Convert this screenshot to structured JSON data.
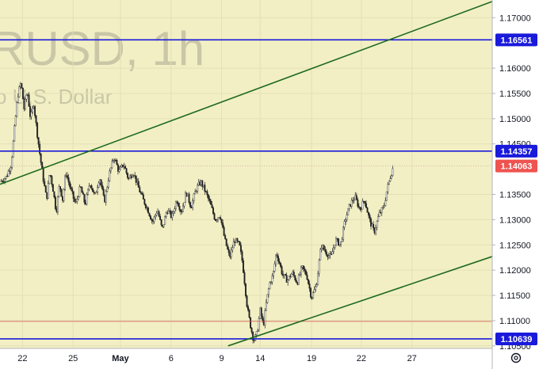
{
  "watermark": {
    "symbol": "RUSD, 1h",
    "description": "o U.S. Dollar"
  },
  "colors": {
    "background": "#f2efc4",
    "blue_level": "#1a1adb",
    "trend": "#1e6b1e",
    "red_level": "#d9534f",
    "candle": "#222222",
    "price_tag": "#ef5350"
  },
  "chart_data": {
    "type": "candlestick",
    "title": "",
    "ylim": [
      1.1045,
      1.1735
    ],
    "y_ticks": [
      "1.17000",
      "1.16000",
      "1.15500",
      "1.15000",
      "1.14500",
      "1.13500",
      "1.13000",
      "1.12500",
      "1.12000",
      "1.11500",
      "1.11000",
      "1.10500"
    ],
    "x_ticks": [
      {
        "label": "22",
        "t": 6
      },
      {
        "label": "25",
        "t": 69
      },
      {
        "label": "May",
        "t": 128
      },
      {
        "label": "6",
        "t": 191
      },
      {
        "label": "9",
        "t": 254
      },
      {
        "label": "14",
        "t": 302
      },
      {
        "label": "19",
        "t": 366
      },
      {
        "label": "22",
        "t": 428
      },
      {
        "label": "27",
        "t": 491
      }
    ],
    "xlim": [
      -22,
      591
    ],
    "horizontal_levels": [
      {
        "price": 1.16561,
        "label": "1.16561",
        "color": "blue"
      },
      {
        "price": 1.14357,
        "label": "1.14357",
        "color": "blue"
      },
      {
        "price": 1.10639,
        "label": "1.10639",
        "color": "blue"
      },
      {
        "price": 1.14063,
        "label": "1.14063",
        "color": "price"
      },
      {
        "price": 1.10985,
        "label": "",
        "color": "red"
      }
    ],
    "trend_lines": [
      {
        "from": [
          -22,
          1.137
        ],
        "to": [
          591,
          1.1732
        ]
      },
      {
        "from": [
          262,
          1.105
        ],
        "to": [
          591,
          1.1227
        ]
      }
    ],
    "price_path": [
      [
        -22,
        1.1375
      ],
      [
        -14,
        1.1385
      ],
      [
        -8,
        1.141
      ],
      [
        -4,
        1.148
      ],
      [
        0,
        1.1545
      ],
      [
        4,
        1.1572
      ],
      [
        8,
        1.152
      ],
      [
        12,
        1.1555
      ],
      [
        16,
        1.15
      ],
      [
        20,
        1.153
      ],
      [
        24,
        1.1475
      ],
      [
        28,
        1.1425
      ],
      [
        32,
        1.138
      ],
      [
        36,
        1.134
      ],
      [
        40,
        1.1395
      ],
      [
        44,
        1.136
      ],
      [
        48,
        1.1315
      ],
      [
        52,
        1.137
      ],
      [
        56,
        1.134
      ],
      [
        60,
        1.1395
      ],
      [
        66,
        1.136
      ],
      [
        72,
        1.133
      ],
      [
        78,
        1.1365
      ],
      [
        84,
        1.133
      ],
      [
        90,
        1.1375
      ],
      [
        96,
        1.1345
      ],
      [
        102,
        1.1385
      ],
      [
        108,
        1.1335
      ],
      [
        114,
        1.139
      ],
      [
        120,
        1.1425
      ],
      [
        126,
        1.1395
      ],
      [
        132,
        1.141
      ],
      [
        138,
        1.138
      ],
      [
        144,
        1.1395
      ],
      [
        150,
        1.1365
      ],
      [
        156,
        1.134
      ],
      [
        162,
        1.132
      ],
      [
        168,
        1.1295
      ],
      [
        174,
        1.132
      ],
      [
        180,
        1.128
      ],
      [
        186,
        1.132
      ],
      [
        192,
        1.1305
      ],
      [
        198,
        1.134
      ],
      [
        204,
        1.1315
      ],
      [
        210,
        1.1355
      ],
      [
        216,
        1.1325
      ],
      [
        222,
        1.136
      ],
      [
        228,
        1.1375
      ],
      [
        234,
        1.1355
      ],
      [
        240,
        1.133
      ],
      [
        246,
        1.13
      ],
      [
        252,
        1.131
      ],
      [
        258,
        1.126
      ],
      [
        264,
        1.1225
      ],
      [
        270,
        1.126
      ],
      [
        276,
        1.125
      ],
      [
        280,
        1.1215
      ],
      [
        286,
        1.1125
      ],
      [
        290,
        1.109
      ],
      [
        294,
        1.106
      ],
      [
        298,
        1.1075
      ],
      [
        302,
        1.112
      ],
      [
        306,
        1.109
      ],
      [
        310,
        1.114
      ],
      [
        314,
        1.1175
      ],
      [
        318,
        1.119
      ],
      [
        322,
        1.1235
      ],
      [
        326,
        1.1215
      ],
      [
        330,
        1.119
      ],
      [
        336,
        1.118
      ],
      [
        342,
        1.1195
      ],
      [
        348,
        1.1175
      ],
      [
        354,
        1.1205
      ],
      [
        360,
        1.119
      ],
      [
        366,
        1.1145
      ],
      [
        372,
        1.117
      ],
      [
        378,
        1.125
      ],
      [
        384,
        1.1235
      ],
      [
        390,
        1.1225
      ],
      [
        396,
        1.126
      ],
      [
        402,
        1.125
      ],
      [
        408,
        1.13
      ],
      [
        414,
        1.133
      ],
      [
        420,
        1.1345
      ],
      [
        426,
        1.132
      ],
      [
        432,
        1.134
      ],
      [
        438,
        1.13
      ],
      [
        444,
        1.1275
      ],
      [
        450,
        1.131
      ],
      [
        456,
        1.1325
      ],
      [
        460,
        1.136
      ],
      [
        464,
        1.1385
      ],
      [
        468,
        1.1406
      ]
    ],
    "current_price": "1.14063"
  },
  "footer": {
    "settings_icon": "gear-icon"
  }
}
